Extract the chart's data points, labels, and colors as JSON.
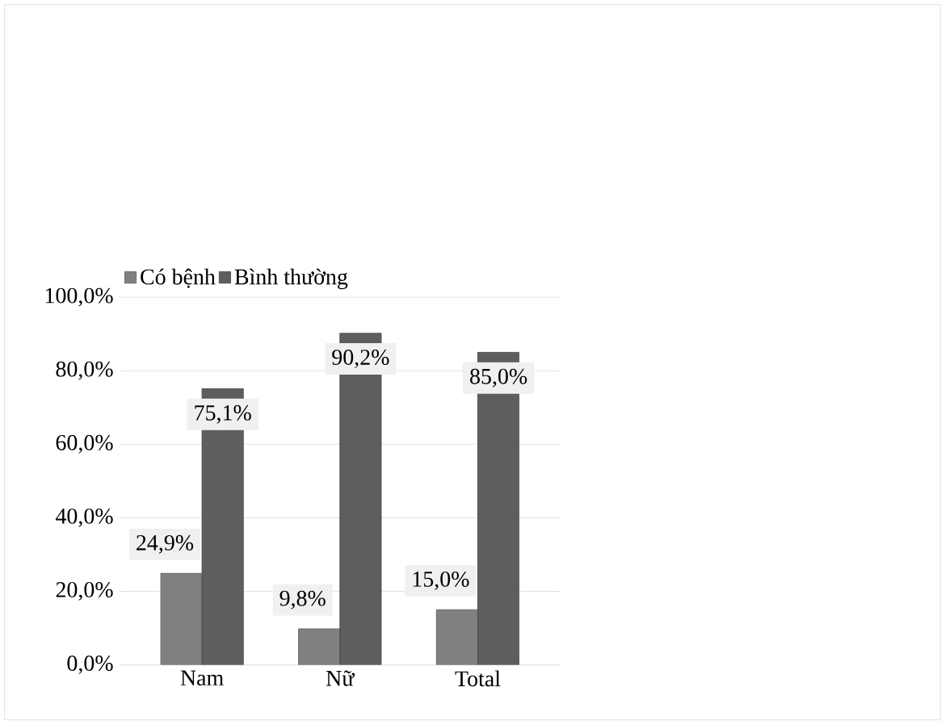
{
  "chart_data": {
    "type": "bar",
    "categories": [
      "Nam",
      "Nữ",
      "Total"
    ],
    "series": [
      {
        "name": "Có bệnh",
        "color": "#808080",
        "values": [
          24.9,
          9.8,
          15.0
        ],
        "value_labels": [
          "24,9%",
          "9,8%",
          "15,0%"
        ]
      },
      {
        "name": "Bình  thường",
        "color": "#5e5e5e",
        "values": [
          75.1,
          90.2,
          85.0
        ],
        "value_labels": [
          "75,1%",
          "90,2%",
          "85,0%"
        ]
      }
    ],
    "ylim": [
      0,
      100
    ],
    "yticks": [
      {
        "value": 0,
        "label": "0,0%"
      },
      {
        "value": 20,
        "label": "20,0%"
      },
      {
        "value": 40,
        "label": "40,0%"
      },
      {
        "value": 60,
        "label": "60,0%"
      },
      {
        "value": 80,
        "label": "80,0%"
      },
      {
        "value": 100,
        "label": "100,0%"
      }
    ],
    "grid": "y",
    "legend": "top left"
  }
}
